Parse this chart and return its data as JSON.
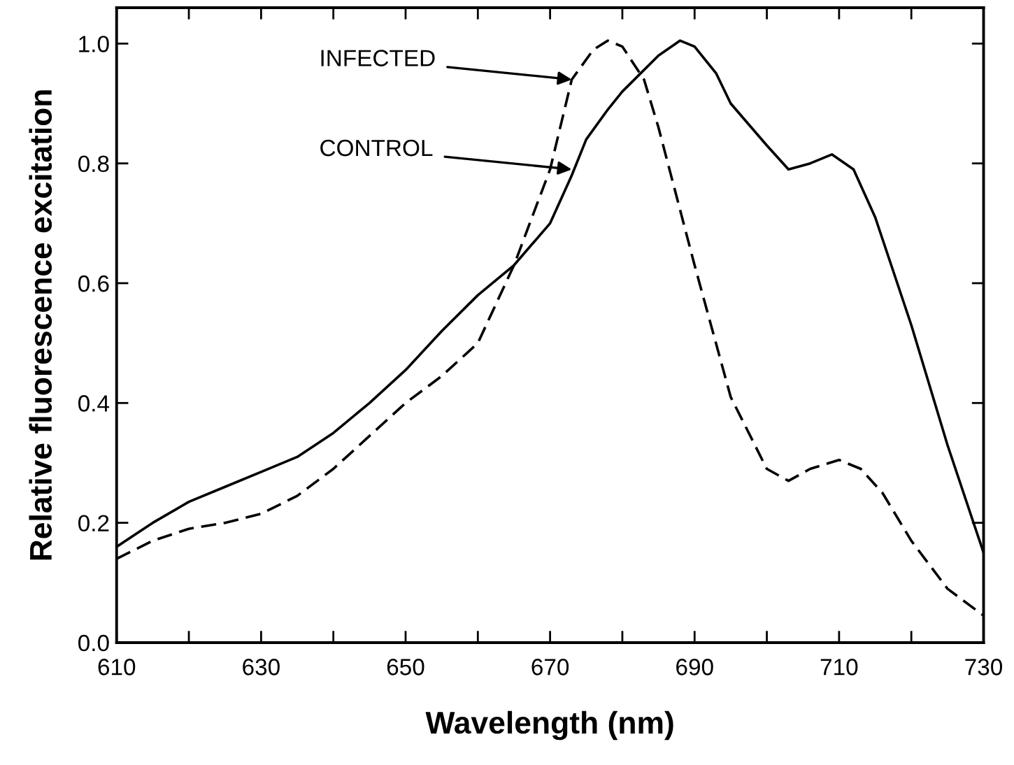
{
  "chart_data": {
    "type": "line",
    "xlabel": "Wavelength (nm)",
    "ylabel": "Relative fluorescence excitation",
    "xlim": [
      610,
      730
    ],
    "ylim": [
      0.0,
      1.06
    ],
    "xticks": [
      610,
      {
        "value": 620,
        "label": null
      },
      630,
      {
        "value": 640,
        "label": null
      },
      650,
      {
        "value": 660,
        "label": null
      },
      670,
      {
        "value": 680,
        "label": null
      },
      690,
      {
        "value": 700,
        "label": null
      },
      710,
      {
        "value": 720,
        "label": null
      },
      730
    ],
    "yticks": [
      {
        "value": 0,
        "label": "0.0"
      },
      0.2,
      0.4,
      0.6,
      0.8,
      {
        "value": 1,
        "label": "1.0"
      }
    ],
    "grid": false,
    "legend": false,
    "marker": "none",
    "series": [
      {
        "color": "#000000",
        "line_style": "solid",
        "x": [
          610,
          615,
          620,
          625,
          630,
          635,
          640,
          645,
          650,
          655,
          660,
          665,
          670,
          673,
          675,
          678,
          680,
          685,
          688,
          690,
          693,
          695,
          700,
          703,
          706,
          709,
          712,
          715,
          720,
          725,
          730
        ],
        "values": [
          0.16,
          0.2,
          0.235,
          0.26,
          0.285,
          0.31,
          0.35,
          0.4,
          0.455,
          0.52,
          0.58,
          0.63,
          0.7,
          0.78,
          0.84,
          0.89,
          0.92,
          0.98,
          1.005,
          0.995,
          0.95,
          0.9,
          0.83,
          0.79,
          0.8,
          0.815,
          0.79,
          0.71,
          0.53,
          0.33,
          0.15
        ]
      },
      {
        "color": "#000000",
        "line_style": "dashed",
        "x": [
          610,
          615,
          620,
          625,
          630,
          635,
          640,
          645,
          650,
          655,
          660,
          665,
          670,
          673,
          676,
          678,
          680,
          683,
          685,
          690,
          695,
          700,
          703,
          706,
          710,
          713,
          716,
          720,
          725,
          730
        ],
        "values": [
          0.14,
          0.17,
          0.19,
          0.2,
          0.215,
          0.245,
          0.29,
          0.345,
          0.4,
          0.445,
          0.5,
          0.63,
          0.79,
          0.94,
          0.99,
          1.005,
          0.995,
          0.94,
          0.86,
          0.63,
          0.41,
          0.29,
          0.27,
          0.29,
          0.305,
          0.29,
          0.25,
          0.17,
          0.09,
          0.045
        ]
      }
    ],
    "annotations": [
      {
        "text": "INFECTED",
        "x": 673,
        "y": 0.94
      },
      {
        "text": "CONTROL",
        "x": 673,
        "y": 0.79
      }
    ]
  }
}
